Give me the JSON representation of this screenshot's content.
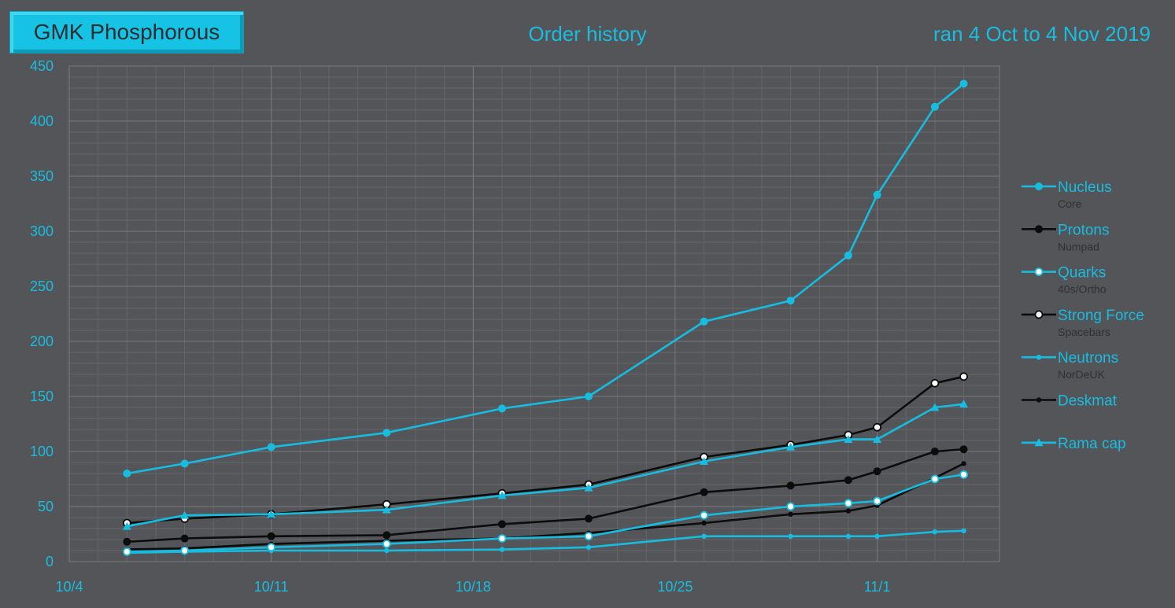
{
  "header": {
    "badge": "GMK Phosphorous",
    "title": "Order history",
    "date_range": "ran 4 Oct to 4 Nov 2019"
  },
  "colors": {
    "cyan": "#17bde0",
    "black": "#0c0c0c",
    "grid_major": "#7a7b80",
    "grid_minor": "#65666a",
    "sub_label": "#2f3034"
  },
  "chart_data": {
    "type": "line",
    "xlabel": "",
    "ylabel": "",
    "x_ticks": [
      "10/4",
      "10/11",
      "10/18",
      "10/25",
      "11/1"
    ],
    "ylim": [
      0,
      450
    ],
    "y_ticks": [
      0,
      50,
      100,
      150,
      200,
      250,
      300,
      350,
      400,
      450
    ],
    "grid": true,
    "legend_position": "right",
    "series": [
      {
        "name": "Nucleus",
        "sub": "Core",
        "color": "#17bde0",
        "marker": "filled-circle",
        "line": "solid",
        "points": [
          [
            "10/6",
            80
          ],
          [
            "10/8",
            89
          ],
          [
            "10/11",
            104
          ],
          [
            "10/15",
            117
          ],
          [
            "10/19",
            139
          ],
          [
            "10/22",
            150
          ],
          [
            "10/26",
            218
          ],
          [
            "10/29",
            237
          ],
          [
            "10/31",
            278
          ],
          [
            "11/1",
            333
          ],
          [
            "11/3",
            413
          ],
          [
            "11/4",
            434
          ]
        ]
      },
      {
        "name": "Protons",
        "sub": "Numpad",
        "color": "#0c0c0c",
        "marker": "filled-circle",
        "line": "solid",
        "points": [
          [
            "10/6",
            18
          ],
          [
            "10/8",
            21
          ],
          [
            "10/11",
            23
          ],
          [
            "10/15",
            24
          ],
          [
            "10/19",
            34
          ],
          [
            "10/22",
            39
          ],
          [
            "10/26",
            63
          ],
          [
            "10/29",
            69
          ],
          [
            "10/31",
            74
          ],
          [
            "11/1",
            82
          ],
          [
            "11/3",
            100
          ],
          [
            "11/4",
            102
          ]
        ]
      },
      {
        "name": "Quarks",
        "sub": "40s/Ortho",
        "color": "#17bde0",
        "marker": "open-circle",
        "line": "solid",
        "points": [
          [
            "10/6",
            9
          ],
          [
            "10/8",
            10
          ],
          [
            "10/11",
            13
          ],
          [
            "10/15",
            16
          ],
          [
            "10/19",
            21
          ],
          [
            "10/22",
            23
          ],
          [
            "10/26",
            42
          ],
          [
            "10/29",
            50
          ],
          [
            "10/31",
            53
          ],
          [
            "11/1",
            55
          ],
          [
            "11/3",
            75
          ],
          [
            "11/4",
            79
          ]
        ]
      },
      {
        "name": "Strong Force",
        "sub": "Spacebars",
        "color": "#0c0c0c",
        "marker": "open-circle",
        "line": "solid",
        "points": [
          [
            "10/6",
            35
          ],
          [
            "10/8",
            39
          ],
          [
            "10/11",
            43
          ],
          [
            "10/15",
            52
          ],
          [
            "10/19",
            62
          ],
          [
            "10/22",
            70
          ],
          [
            "10/26",
            95
          ],
          [
            "10/29",
            106
          ],
          [
            "10/31",
            115
          ],
          [
            "11/1",
            122
          ],
          [
            "11/3",
            162
          ],
          [
            "11/4",
            168
          ]
        ]
      },
      {
        "name": "Neutrons",
        "sub": "NorDeUK",
        "color": "#17bde0",
        "marker": "small-dot",
        "line": "solid",
        "points": [
          [
            "10/6",
            8
          ],
          [
            "10/8",
            9
          ],
          [
            "10/11",
            10
          ],
          [
            "10/15",
            10
          ],
          [
            "10/19",
            11
          ],
          [
            "10/22",
            13
          ],
          [
            "10/26",
            23
          ],
          [
            "10/29",
            23
          ],
          [
            "10/31",
            23
          ],
          [
            "11/1",
            23
          ],
          [
            "11/3",
            27
          ],
          [
            "11/4",
            28
          ]
        ]
      },
      {
        "name": "Deskmat",
        "sub": "",
        "color": "#0c0c0c",
        "marker": "small-dot",
        "line": "solid",
        "points": [
          [
            "10/6",
            11
          ],
          [
            "10/8",
            12
          ],
          [
            "10/11",
            16
          ],
          [
            "10/15",
            19
          ],
          [
            "10/19",
            21
          ],
          [
            "10/22",
            26
          ],
          [
            "10/26",
            35
          ],
          [
            "10/29",
            43
          ],
          [
            "10/31",
            46
          ],
          [
            "11/1",
            51
          ],
          [
            "11/3",
            76
          ],
          [
            "11/4",
            89
          ]
        ]
      },
      {
        "name": "Rama cap",
        "sub": "",
        "color": "#17bde0",
        "marker": "triangle",
        "line": "solid",
        "points": [
          [
            "10/6",
            32
          ],
          [
            "10/8",
            42
          ],
          [
            "10/11",
            43
          ],
          [
            "10/15",
            47
          ],
          [
            "10/19",
            60
          ],
          [
            "10/22",
            67
          ],
          [
            "10/26",
            91
          ],
          [
            "10/29",
            104
          ],
          [
            "10/31",
            111
          ],
          [
            "11/1",
            111
          ],
          [
            "11/3",
            140
          ],
          [
            "11/4",
            143
          ]
        ]
      }
    ]
  }
}
